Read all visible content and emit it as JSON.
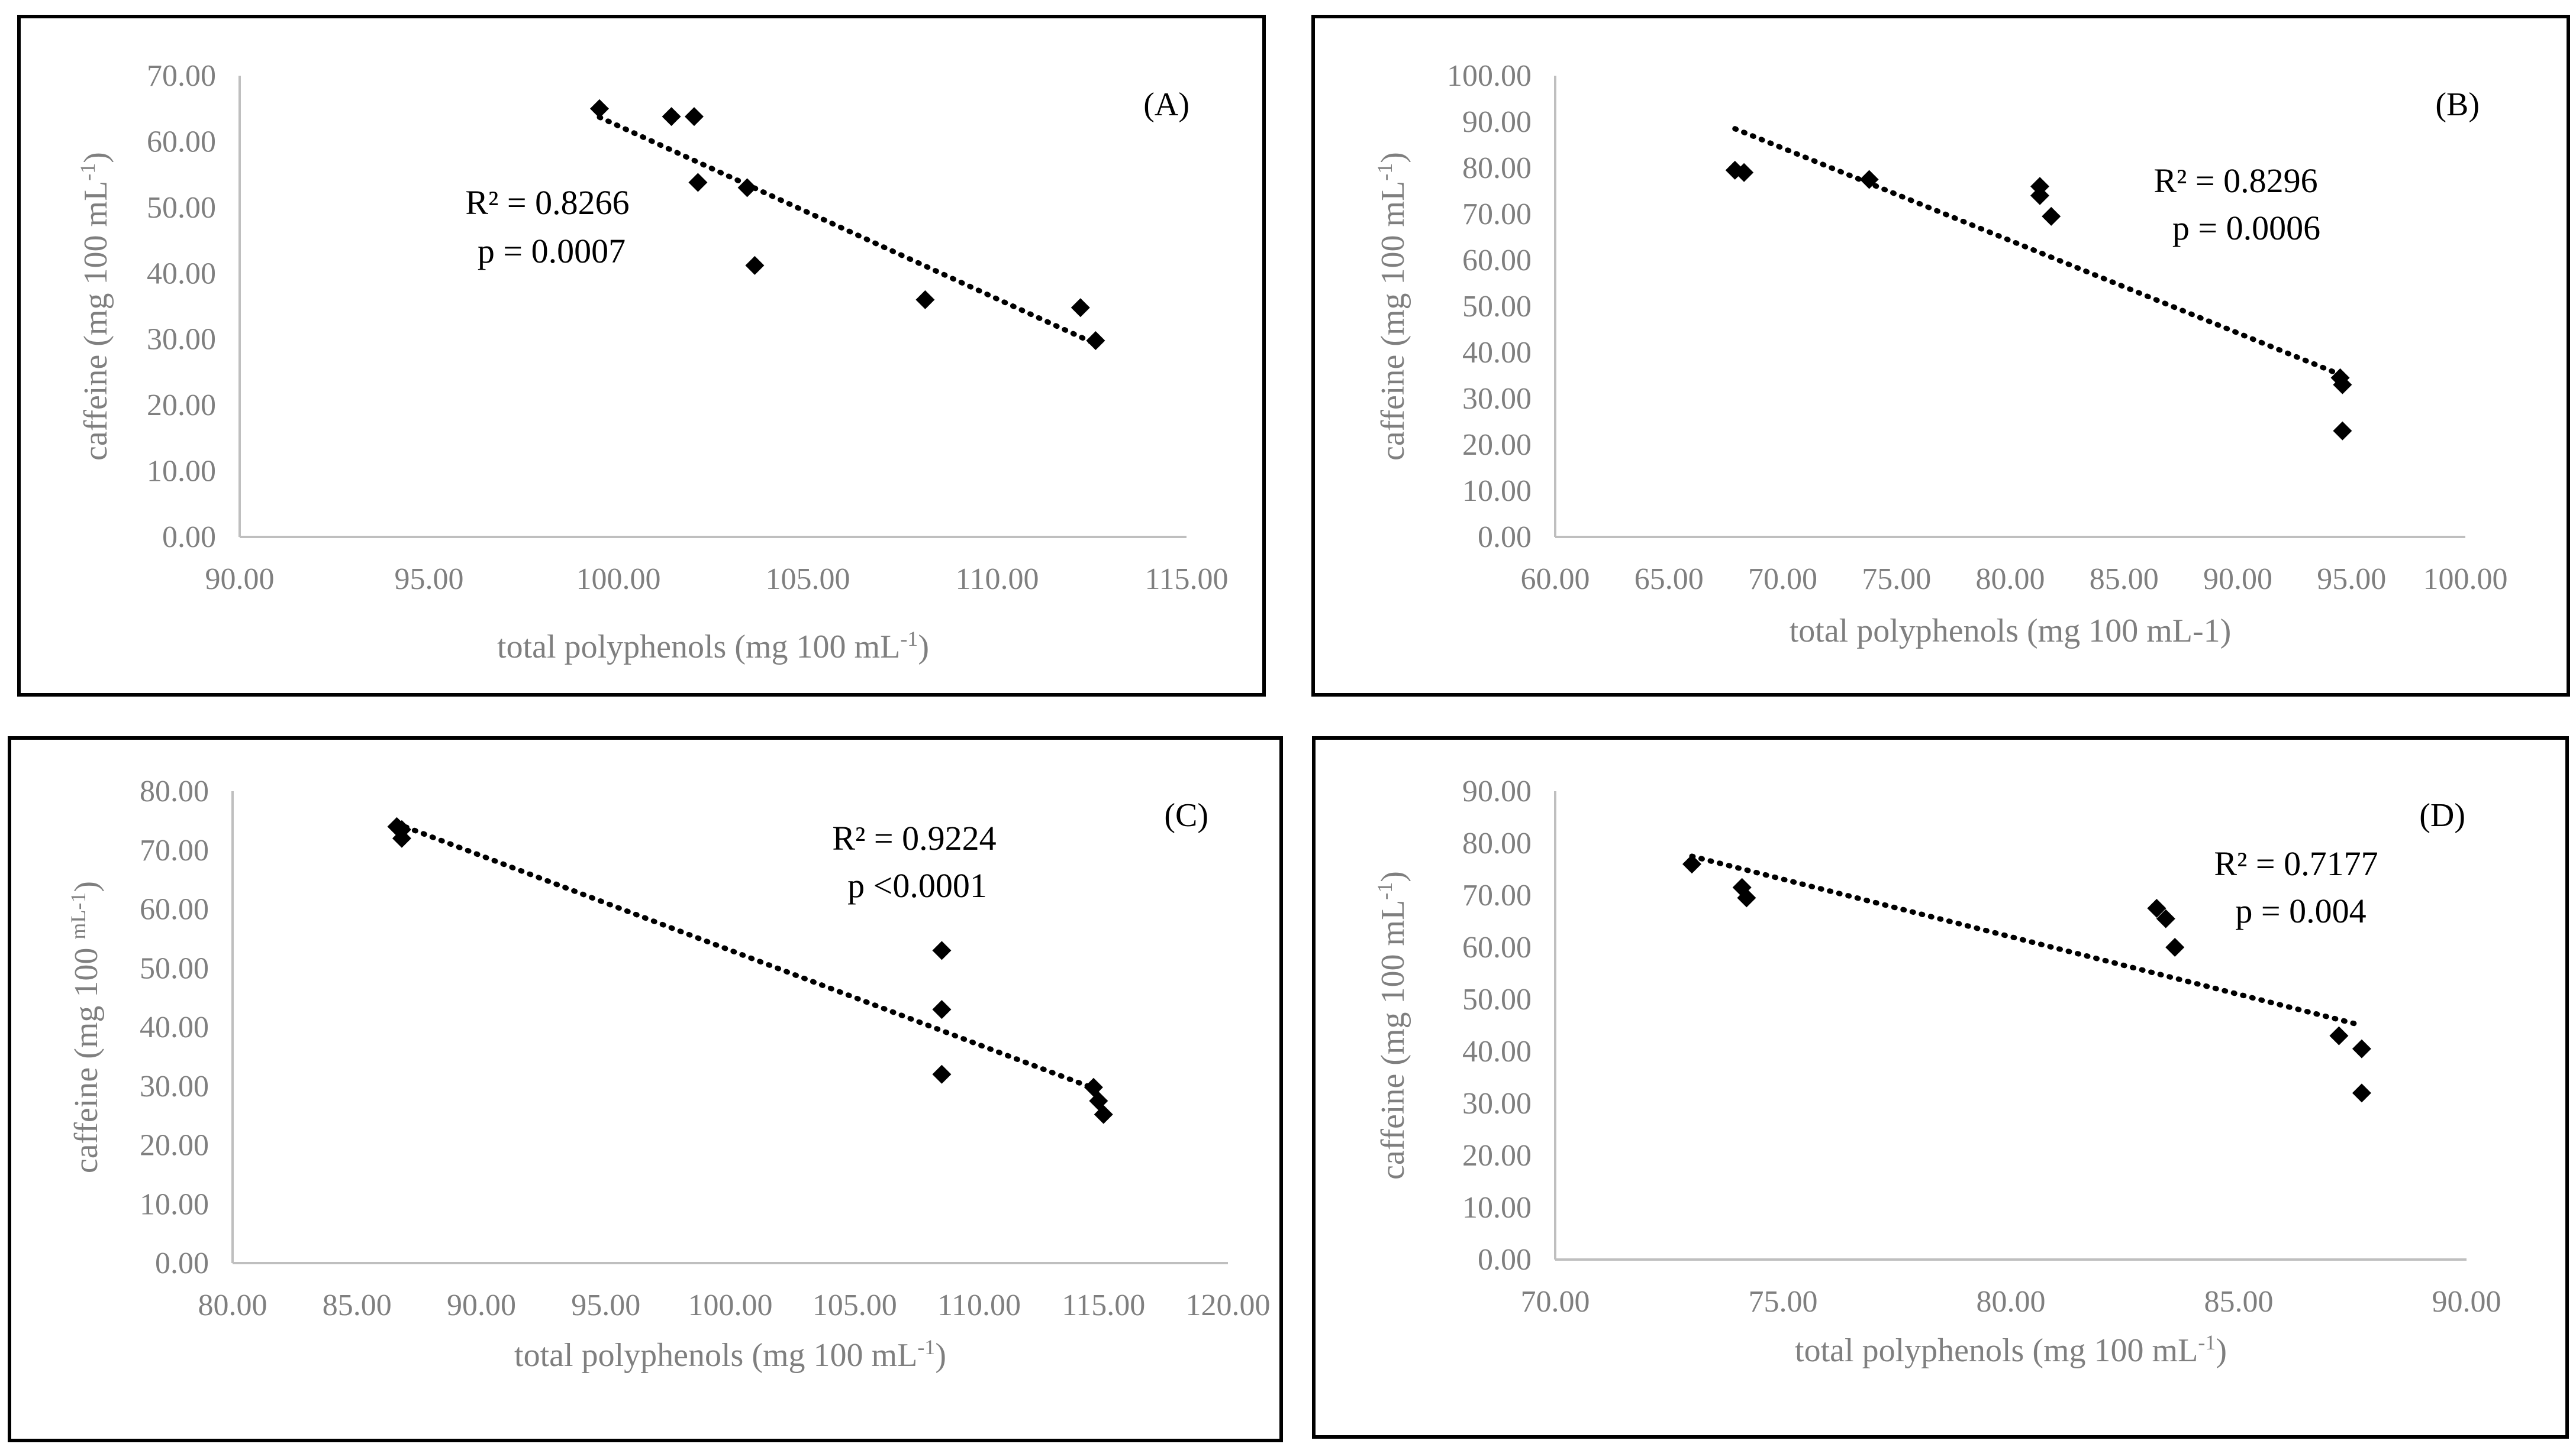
{
  "colors": {
    "frame": "#000000",
    "axis": "#bfbfbf",
    "tick_text": "#7f7f7f",
    "point": "#000000",
    "trend": "#000000"
  },
  "chart_data": [
    {
      "type": "scatter",
      "panel": "(A)",
      "xlabel": "total polyphenols (mg 100 mL",
      "xlabel_sup": "-1",
      "xlabel_tail": ")",
      "ylabel": "caffeine (mg 100 mL",
      "ylabel_sup": "-1",
      "ylabel_tail": ")",
      "xlim": [
        90,
        115
      ],
      "xstep": 5,
      "ylim": [
        0,
        70
      ],
      "ystep": 10,
      "xticks": [
        "90.00",
        "95.00",
        "100.00",
        "105.00",
        "110.00",
        "115.00"
      ],
      "yticks": [
        "0.00",
        "10.00",
        "20.00",
        "30.00",
        "40.00",
        "50.00",
        "60.00",
        "70.00"
      ],
      "points": [
        [
          99.5,
          65.0
        ],
        [
          101.4,
          63.8
        ],
        [
          102.0,
          63.8
        ],
        [
          102.1,
          53.8
        ],
        [
          103.4,
          53.0
        ],
        [
          103.6,
          41.2
        ],
        [
          108.1,
          36.0
        ],
        [
          112.2,
          34.8
        ],
        [
          112.6,
          29.8
        ]
      ],
      "trendline": {
        "x": [
          99.5,
          112.6
        ],
        "y": [
          63.7,
          29.3
        ]
      },
      "annotations": [
        "R² = 0.8266",
        "p = 0.0007"
      ],
      "annotation_pos": "middle-left",
      "label_pos": "top-right"
    },
    {
      "type": "scatter",
      "panel": "(B)",
      "xlabel": "total polyphenols (mg 100 mL-1)",
      "xlabel_sup": "",
      "xlabel_tail": "",
      "ylabel": "caffeine (mg 100 mL",
      "ylabel_sup": "-1",
      "ylabel_tail": ")",
      "xlim": [
        60,
        100
      ],
      "xstep": 5,
      "ylim": [
        0,
        100
      ],
      "ystep": 10,
      "xticks": [
        "60.00",
        "65.00",
        "70.00",
        "75.00",
        "80.00",
        "85.00",
        "90.00",
        "95.00",
        "100.00"
      ],
      "yticks": [
        "0.00",
        "10.00",
        "20.00",
        "30.00",
        "40.00",
        "50.00",
        "60.00",
        "70.00",
        "80.00",
        "90.00",
        "100.00"
      ],
      "points": [
        [
          67.9,
          79.5
        ],
        [
          68.3,
          79.0
        ],
        [
          73.8,
          77.5
        ],
        [
          81.3,
          76.0
        ],
        [
          81.3,
          74.0
        ],
        [
          81.8,
          69.5
        ],
        [
          94.5,
          34.5
        ],
        [
          94.6,
          33.0
        ],
        [
          94.6,
          23.0
        ]
      ],
      "trendline": {
        "x": [
          67.9,
          94.6
        ],
        "y": [
          88.5,
          35.0
        ]
      },
      "annotations": [
        "R² = 0.8296",
        "p = 0.0006"
      ],
      "annotation_pos": "upper-right",
      "label_pos": "top-right"
    },
    {
      "type": "scatter",
      "panel": "(C)",
      "xlabel": "total polyphenols (mg 100 mL",
      "xlabel_sup": "-1",
      "xlabel_tail": ")",
      "ylabel": "caffeine (mg 100 ",
      "ylabel_sup": "mL-1",
      "ylabel_tail": ")",
      "xlim": [
        80,
        120
      ],
      "xstep": 5,
      "ylim": [
        0,
        80
      ],
      "ystep": 10,
      "xticks": [
        "80.00",
        "85.00",
        "90.00",
        "95.00",
        "100.00",
        "105.00",
        "110.00",
        "115.00",
        "120.00"
      ],
      "yticks": [
        "0.00",
        "10.00",
        "20.00",
        "30.00",
        "40.00",
        "50.00",
        "60.00",
        "70.00",
        "80.00"
      ],
      "points": [
        [
          86.6,
          74.0
        ],
        [
          86.8,
          73.5
        ],
        [
          86.8,
          72.0
        ],
        [
          108.5,
          53.0
        ],
        [
          108.5,
          43.0
        ],
        [
          108.5,
          32.0
        ],
        [
          114.6,
          29.8
        ],
        [
          114.8,
          27.5
        ],
        [
          115.0,
          25.2
        ]
      ],
      "trendline": {
        "x": [
          86.6,
          115.0
        ],
        "y": [
          74.5,
          29.0
        ]
      },
      "annotations": [
        "R² = 0.9224",
        "p <0.0001"
      ],
      "annotation_pos": "upper-right",
      "label_pos": "top-right"
    },
    {
      "type": "scatter",
      "panel": "(D)",
      "xlabel": "total polyphenols (mg 100 mL",
      "xlabel_sup": "-1",
      "xlabel_tail": ")",
      "ylabel": "caffeine (mg 100 mL",
      "ylabel_sup": "-1",
      "ylabel_tail": ")",
      "xlim": [
        70,
        90
      ],
      "xstep": 5,
      "ylim": [
        0,
        90
      ],
      "ystep": 10,
      "xticks": [
        "70.00",
        "75.00",
        "80.00",
        "85.00",
        "90.00"
      ],
      "yticks": [
        "0.00",
        "10.00",
        "20.00",
        "30.00",
        "40.00",
        "50.00",
        "60.00",
        "70.00",
        "80.00",
        "90.00"
      ],
      "points": [
        [
          73.0,
          76.0
        ],
        [
          74.1,
          71.5
        ],
        [
          74.2,
          69.5
        ],
        [
          83.2,
          67.5
        ],
        [
          83.4,
          65.5
        ],
        [
          83.6,
          60.0
        ],
        [
          87.2,
          43.0
        ],
        [
          87.7,
          40.5
        ],
        [
          87.7,
          32.0
        ]
      ],
      "trendline": {
        "x": [
          73.0,
          87.7
        ],
        "y": [
          77.5,
          45.0
        ]
      },
      "annotations": [
        "R² = 0.7177",
        "p = 0.004"
      ],
      "annotation_pos": "upper-right",
      "label_pos": "top-right"
    }
  ]
}
